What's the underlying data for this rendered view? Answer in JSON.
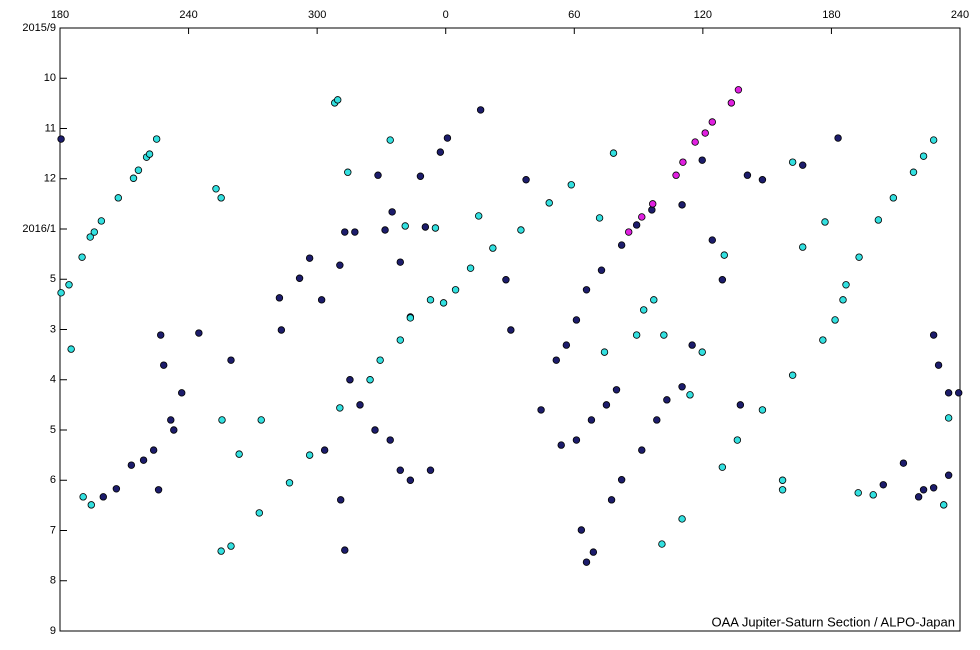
{
  "chart_data": {
    "type": "scatter",
    "footer": "OAA Jupiter-Saturn Section / ALPO-Japan",
    "xlim": [
      180,
      600
    ],
    "xticks": [
      180,
      240,
      300,
      {
        "value": 360,
        "label": "0"
      },
      {
        "value": 420,
        "label": "60"
      },
      {
        "value": 480,
        "label": "120"
      },
      {
        "value": 540,
        "label": "180"
      },
      {
        "value": 600,
        "label": "240"
      }
    ],
    "ylim": [
      0,
      12
    ],
    "yticks": [
      {
        "value": 0,
        "label": "2015/9"
      },
      {
        "value": 1,
        "label": "10"
      },
      {
        "value": 2,
        "label": "11"
      },
      {
        "value": 3,
        "label": "12"
      },
      {
        "value": 4,
        "label": "2016/1"
      },
      5,
      {
        "value": 6,
        "label": "3"
      },
      {
        "value": 7,
        "label": "4"
      },
      {
        "value": 8,
        "label": "5"
      },
      {
        "value": 9,
        "label": "6"
      },
      {
        "value": 10,
        "label": "7"
      },
      {
        "value": 11,
        "label": "8"
      },
      {
        "value": 12,
        "label": "9"
      }
    ],
    "y_inverted": true,
    "series": [
      {
        "color": "#1c1c6b",
        "x": [
          180.5,
          200.2,
          206.3,
          213.3,
          219,
          223.7,
          226,
          227,
          228.4,
          231.7,
          233.1,
          236.8,
          244.8,
          259.8,
          282.4,
          283.3,
          291.8,
          296.5,
          302.1,
          310.6,
          312.9,
          317.6,
          328.4,
          331.7,
          335,
          338.8,
          343.5,
          348.2,
          350.5,
          360.8,
          357.5,
          376.3,
          388.1,
          397.5,
          390.4,
          404.5,
          411.6,
          416.3,
          421,
          425.7,
          432.7,
          442.1,
          449.1,
          456.2,
          470.3,
          479.7,
          484.4,
          423.3,
          428.9,
          437.4,
          442.1,
          451.5,
          458.5,
          463.2,
          470.3,
          475,
          413.9,
          421,
          428,
          435,
          439.7,
          315.3,
          320,
          327,
          334.1,
          338.8,
          343.5,
          352.9,
          312.9,
          311,
          303.5,
          489.1,
          500.8,
          507.8,
          526.6,
          543.1,
          497.5,
          587.7,
          590,
          594.7,
          599.4,
          583,
          587.7,
          594.7,
          573.6,
          564.2,
          580.7,
          425.7
        ],
        "values": [
          2.21,
          9.33,
          9.17,
          8.7,
          8.6,
          8.4,
          9.19,
          6.11,
          6.71,
          7.8,
          8,
          7.26,
          6.07,
          6.61,
          5.37,
          6.01,
          4.98,
          4.58,
          5.41,
          4.72,
          4.06,
          4.06,
          2.93,
          4.02,
          3.66,
          4.66,
          5.75,
          2.95,
          3.96,
          2.19,
          2.47,
          1.63,
          5.01,
          3.02,
          6.01,
          7.6,
          6.61,
          6.31,
          5.81,
          5.21,
          4.82,
          4.32,
          3.92,
          3.62,
          3.52,
          2.63,
          4.22,
          9.99,
          10.43,
          9.39,
          8.99,
          8.4,
          7.8,
          7.4,
          7.14,
          6.31,
          8.3,
          8.2,
          7.8,
          7.5,
          7.2,
          7,
          7.5,
          8,
          8.2,
          8.8,
          9,
          8.8,
          10.39,
          9.39,
          8.4,
          5.01,
          2.93,
          3.02,
          2.73,
          2.19,
          7.5,
          6.11,
          6.71,
          7.26,
          7.26,
          9.19,
          9.15,
          8.9,
          8.66,
          9.09,
          9.33,
          10.63
        ]
      },
      {
        "color": "#33e0e0",
        "x": [
          180.5,
          184.2,
          185.2,
          190.3,
          194.1,
          196,
          199.3,
          207.2,
          214.3,
          216.6,
          220.4,
          221.8,
          225.1,
          252.8,
          255.2,
          308.2,
          309.6,
          314.3,
          334.1,
          341.1,
          355.2,
          375.4,
          359,
          364.6,
          371.6,
          382,
          395.1,
          408.3,
          418.6,
          431.8,
          438.3,
          434.1,
          449.1,
          452.4,
          457.1,
          461.8,
          474,
          479.7,
          490,
          521.9,
          537,
          526.6,
          546.8,
          552.9,
          561.9,
          568.9,
          578.3,
          583,
          587.7,
          489.1,
          496.1,
          507.8,
          521.9,
          536,
          541.7,
          545.4,
          190.8,
          194.6,
          255.2,
          259.8,
          273,
          460.9,
          470.3,
          273.9,
          287.1,
          296.5,
          310.6,
          324.7,
          329.4,
          338.8,
          343.5,
          352.9,
          255.6,
          263.6,
          594.7,
          592.4,
          552.5,
          559.5,
          517.2,
          517.2
        ],
        "values": [
          5.27,
          5.11,
          6.39,
          4.56,
          4.16,
          4.06,
          3.84,
          3.38,
          2.99,
          2.83,
          2.57,
          2.51,
          2.21,
          3.2,
          3.38,
          1.49,
          1.43,
          2.87,
          2.23,
          3.94,
          3.98,
          3.74,
          5.47,
          5.21,
          4.78,
          4.38,
          4.02,
          3.48,
          3.12,
          3.78,
          2.49,
          6.45,
          6.11,
          5.61,
          5.41,
          6.11,
          7.3,
          6.45,
          4.52,
          2.67,
          3.86,
          4.36,
          5.11,
          4.56,
          3.82,
          3.38,
          2.87,
          2.55,
          2.23,
          8.74,
          8.2,
          7.6,
          6.91,
          6.21,
          5.81,
          5.41,
          9.33,
          9.49,
          10.41,
          10.31,
          9.65,
          10.27,
          9.77,
          7.8,
          9.05,
          8.5,
          7.56,
          7,
          6.61,
          6.21,
          5.77,
          5.41,
          7.8,
          8.48,
          7.76,
          9.49,
          9.25,
          9.29,
          9.19,
          9
        ]
      },
      {
        "color": "#e020e0",
        "x": [
          496.6,
          493.3,
          484.4,
          481.1,
          476.4,
          470.7,
          467.5,
          456.6,
          451.5,
          445.4
        ],
        "values": [
          1.23,
          1.49,
          1.87,
          2.09,
          2.27,
          2.67,
          2.93,
          3.5,
          3.76,
          4.06
        ]
      }
    ]
  }
}
